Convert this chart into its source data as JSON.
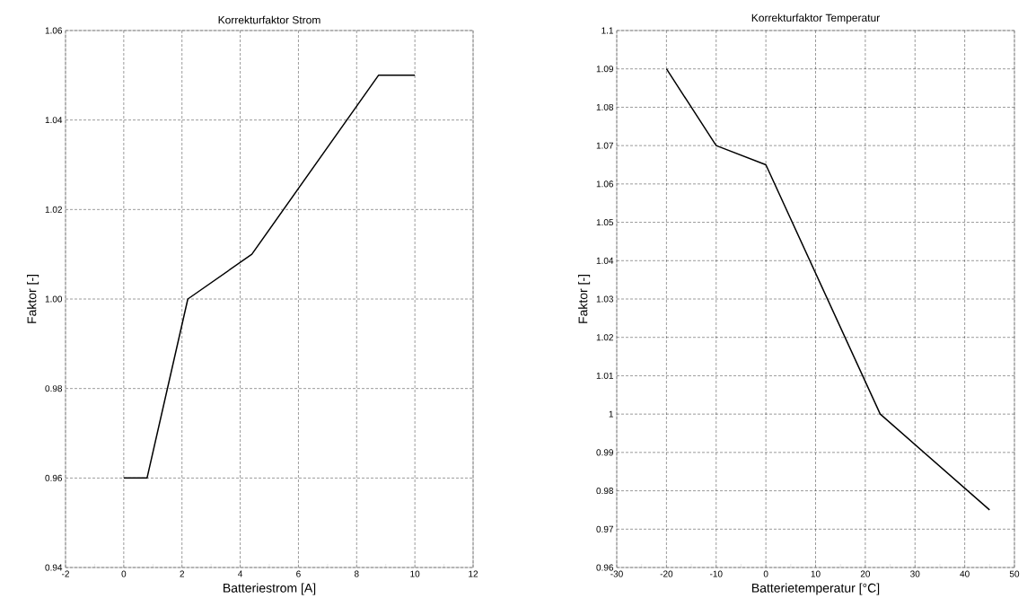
{
  "chart_data": [
    {
      "type": "line",
      "title": "Korrekturfaktor Strom",
      "xlabel": "Batteriestrom [A]",
      "ylabel": "Faktor [-]",
      "x": [
        0,
        0.8,
        2.2,
        4.4,
        8.75,
        10
      ],
      "values": [
        0.96,
        0.96,
        1.0,
        1.01,
        1.05,
        1.05
      ],
      "color": "#000000",
      "xlim": [
        -2,
        12
      ],
      "ylim": [
        0.94,
        1.06
      ],
      "xticks": [
        -2,
        0,
        2,
        4,
        6,
        8,
        10,
        12
      ],
      "yticks": [
        0.94,
        0.96,
        0.98,
        {
          "value": 1,
          "label": "1.00"
        },
        1.02,
        1.04,
        1.06
      ],
      "grid": true,
      "marker": "none",
      "line_style": "solid"
    },
    {
      "type": "line",
      "title": "Korrekturfaktor Temperatur",
      "xlabel": "Batterietemperatur [°C]",
      "ylabel": "Faktor [-]",
      "x": [
        -20,
        -10,
        0,
        23,
        45
      ],
      "values": [
        1.09,
        1.07,
        1.065,
        1.0,
        0.975
      ],
      "color": "#000000",
      "xlim": [
        -30,
        50
      ],
      "ylim": [
        0.96,
        1.1
      ],
      "xticks": [
        -30,
        -20,
        -10,
        0,
        10,
        20,
        30,
        40,
        50
      ],
      "yticks": [
        0.96,
        0.97,
        0.98,
        0.99,
        1,
        1.01,
        1.02,
        1.03,
        1.04,
        1.05,
        1.06,
        1.07,
        1.08,
        1.09,
        1.1
      ],
      "grid": true,
      "marker": "none",
      "line_style": "solid"
    }
  ]
}
